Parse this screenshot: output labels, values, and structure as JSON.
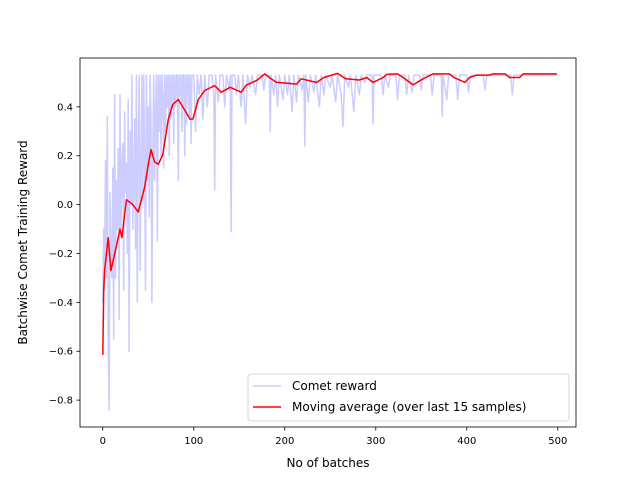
{
  "chart_data": {
    "type": "line",
    "title": "",
    "xlabel": "No of batches",
    "ylabel": "Batchwise Comet Training Reward",
    "xlim": [
      -25,
      520
    ],
    "ylim": [
      -0.91,
      0.6
    ],
    "xticks": [
      0,
      100,
      200,
      300,
      400,
      500
    ],
    "xtick_labels": [
      "0",
      "100",
      "200",
      "300",
      "400",
      "500"
    ],
    "yticks": [
      -0.8,
      -0.6,
      -0.4,
      -0.2,
      0.0,
      0.2,
      0.4
    ],
    "ytick_labels": [
      "−0.8",
      "−0.6",
      "−0.4",
      "−0.2",
      "0.0",
      "0.2",
      "0.4"
    ],
    "grid": false,
    "legend_position": "lower-right",
    "series": [
      {
        "name": "Comet reward",
        "color": "#ccccff",
        "x": [
          0,
          1,
          2,
          3,
          4,
          5,
          6,
          7,
          8,
          9,
          10,
          11,
          12,
          13,
          14,
          15,
          16,
          17,
          18,
          19,
          20,
          21,
          22,
          23,
          24,
          25,
          26,
          27,
          28,
          29,
          30,
          31,
          32,
          33,
          34,
          35,
          36,
          37,
          38,
          39,
          40,
          41,
          42,
          43,
          44,
          45,
          46,
          47,
          48,
          49,
          50,
          51,
          52,
          53,
          54,
          55,
          56,
          57,
          58,
          59,
          60,
          61,
          62,
          63,
          64,
          65,
          66,
          67,
          68,
          69,
          70,
          71,
          72,
          73,
          74,
          75,
          76,
          77,
          78,
          79,
          80,
          81,
          82,
          83,
          84,
          85,
          86,
          87,
          88,
          89,
          90,
          91,
          92,
          93,
          94,
          95,
          96,
          97,
          98,
          99,
          100,
          102,
          104,
          106,
          108,
          110,
          112,
          115,
          117,
          120,
          122,
          123,
          124,
          127,
          129,
          132,
          134,
          136,
          139,
          140,
          141,
          142,
          145,
          147,
          149,
          152,
          154,
          157,
          159,
          162,
          164,
          168,
          170,
          175,
          177,
          179,
          183,
          184,
          185,
          188,
          190,
          192,
          194,
          198,
          200,
          203,
          205,
          208,
          210,
          213,
          215,
          219,
          221,
          222,
          223,
          226,
          228,
          232,
          234,
          238,
          240,
          243,
          245,
          250,
          252,
          256,
          258,
          262,
          264,
          266,
          270,
          272,
          276,
          278,
          282,
          284,
          288,
          290,
          296,
          297,
          298,
          306,
          308,
          310,
          314,
          316,
          322,
          324,
          326,
          332,
          334,
          336,
          340,
          342,
          348,
          350,
          352,
          360,
          362,
          364,
          372,
          373,
          374,
          378,
          380,
          388,
          390,
          392,
          400,
          402,
          404,
          418,
          420,
          422,
          448,
          450,
          452,
          499
        ],
        "y": [
          -0.4,
          -0.1,
          -0.35,
          0.18,
          -0.3,
          0.36,
          -0.55,
          -0.84,
          0.05,
          -0.2,
          -0.3,
          0.15,
          -0.55,
          0.45,
          -0.3,
          0.1,
          -0.1,
          0.23,
          -0.47,
          0.45,
          -0.1,
          0.15,
          0.25,
          -0.35,
          0.38,
          0.05,
          0.17,
          -0.2,
          0.43,
          -0.6,
          0.3,
          0.0,
          0.53,
          -0.1,
          0.1,
          0.35,
          -0.18,
          0.53,
          -0.4,
          0.25,
          0.53,
          -0.27,
          0.15,
          0.53,
          0.0,
          0.53,
          0.2,
          -0.35,
          0.53,
          0.1,
          0.4,
          -0.05,
          0.53,
          0.35,
          -0.4,
          0.2,
          0.53,
          0.1,
          0.4,
          0.53,
          -0.15,
          0.53,
          0.3,
          0.53,
          0.2,
          0.53,
          0.45,
          0.15,
          0.53,
          0.3,
          0.53,
          0.4,
          0.53,
          0.2,
          0.53,
          0.35,
          0.53,
          0.53,
          0.25,
          0.53,
          0.4,
          0.53,
          0.53,
          0.1,
          0.53,
          0.45,
          0.53,
          0.3,
          0.53,
          0.53,
          0.2,
          0.53,
          0.33,
          0.53,
          0.53,
          0.35,
          0.53,
          0.25,
          0.53,
          0.53,
          0.53,
          0.3,
          0.53,
          0.45,
          0.53,
          0.35,
          0.53,
          0.4,
          0.53,
          0.53,
          0.45,
          0.06,
          0.53,
          0.42,
          0.53,
          0.53,
          0.4,
          0.53,
          0.47,
          0.53,
          -0.11,
          0.53,
          0.53,
          0.45,
          0.53,
          0.4,
          0.53,
          0.33,
          0.53,
          0.48,
          0.53,
          0.45,
          0.53,
          0.53,
          0.47,
          0.53,
          0.53,
          0.3,
          0.53,
          0.45,
          0.53,
          0.4,
          0.53,
          0.43,
          0.53,
          0.45,
          0.53,
          0.38,
          0.53,
          0.42,
          0.53,
          0.47,
          0.53,
          0.24,
          0.53,
          0.42,
          0.53,
          0.46,
          0.53,
          0.4,
          0.53,
          0.45,
          0.53,
          0.48,
          0.53,
          0.42,
          0.53,
          0.45,
          0.32,
          0.53,
          0.48,
          0.53,
          0.38,
          0.53,
          0.45,
          0.53,
          0.5,
          0.53,
          0.53,
          0.33,
          0.53,
          0.53,
          0.45,
          0.53,
          0.48,
          0.53,
          0.53,
          0.43,
          0.53,
          0.53,
          0.45,
          0.53,
          0.46,
          0.53,
          0.53,
          0.47,
          0.53,
          0.53,
          0.45,
          0.53,
          0.53,
          0.36,
          0.53,
          0.43,
          0.53,
          0.53,
          0.43,
          0.53,
          0.53,
          0.46,
          0.53,
          0.53,
          0.47,
          0.53,
          0.53,
          0.45,
          0.53,
          0.53
        ]
      },
      {
        "name": "Moving average (over last 15 samples)",
        "color": "#ff0000",
        "x": [
          0,
          1,
          2,
          6,
          9,
          15,
          19,
          21,
          26,
          33,
          39,
          46,
          50,
          53,
          57,
          61,
          66,
          72,
          77,
          83,
          88,
          96,
          99,
          105,
          112,
          123,
          130,
          140,
          152,
          158,
          169,
          178,
          183,
          191,
          193,
          213,
          218,
          235,
          243,
          258,
          267,
          282,
          290,
          297,
          308,
          312,
          324,
          330,
          341,
          352,
          363,
          381,
          386,
          398,
          403,
          411,
          425,
          429,
          442,
          447,
          458,
          462,
          499
        ],
        "y": [
          -0.615,
          -0.35,
          -0.27,
          -0.135,
          -0.27,
          -0.17,
          -0.1,
          -0.135,
          0.02,
          0.0,
          -0.03,
          0.07,
          0.165,
          0.225,
          0.175,
          0.165,
          0.205,
          0.35,
          0.41,
          0.43,
          0.4,
          0.35,
          0.35,
          0.43,
          0.467,
          0.487,
          0.46,
          0.48,
          0.46,
          0.49,
          0.508,
          0.535,
          0.52,
          0.5,
          0.5,
          0.493,
          0.515,
          0.5,
          0.52,
          0.537,
          0.515,
          0.51,
          0.52,
          0.5,
          0.52,
          0.533,
          0.535,
          0.52,
          0.49,
          0.515,
          0.535,
          0.535,
          0.52,
          0.5,
          0.52,
          0.53,
          0.53,
          0.535,
          0.535,
          0.52,
          0.52,
          0.535,
          0.535
        ]
      }
    ]
  }
}
